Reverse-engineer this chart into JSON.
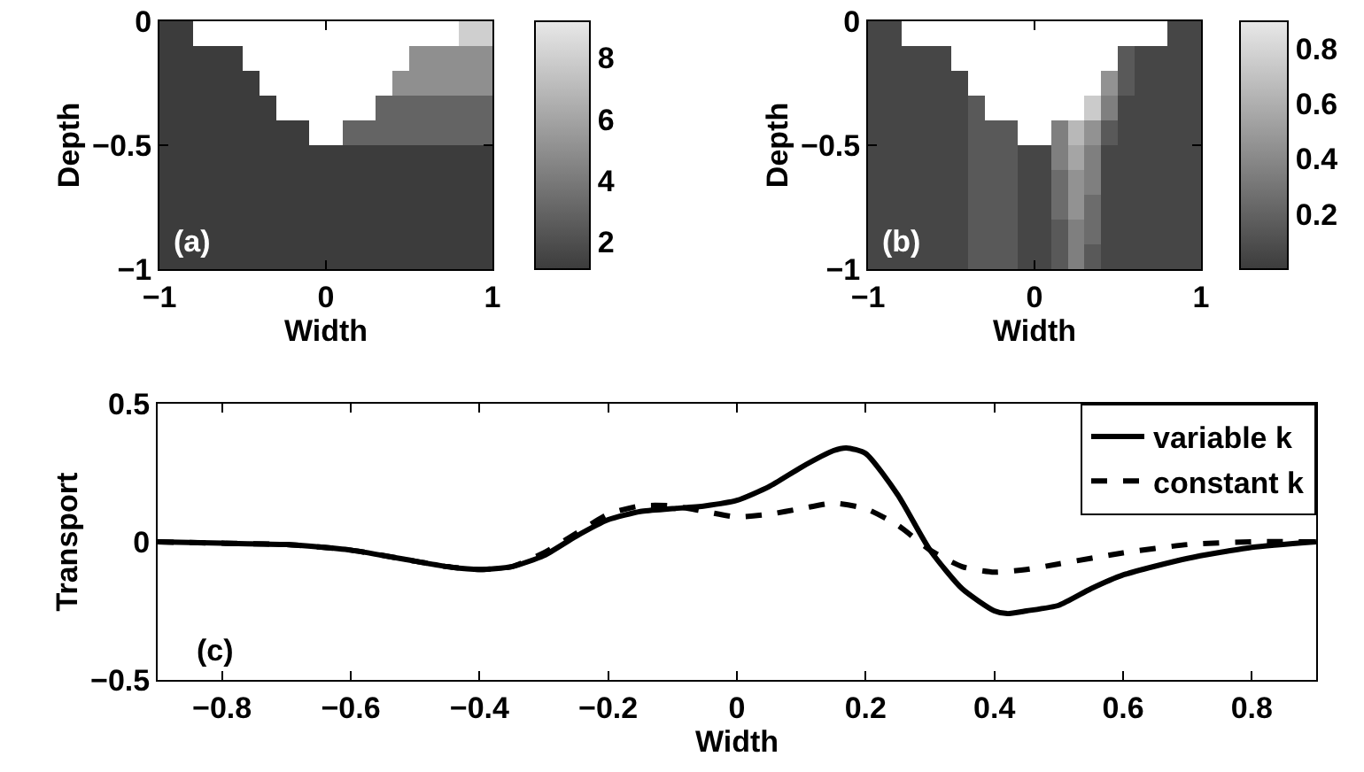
{
  "chart_data": [
    {
      "type": "heatmap",
      "xlabel": "Width",
      "ylabel": "Depth",
      "annotations": [
        "(a)"
      ],
      "x": [
        -0.95,
        -0.85,
        -0.75,
        -0.65,
        -0.55,
        -0.45,
        -0.35,
        -0.25,
        -0.15,
        -0.05,
        0.05,
        0.15,
        0.25,
        0.35,
        0.45,
        0.55,
        0.65,
        0.75,
        0.85,
        0.95
      ],
      "y": [
        -0.05,
        -0.15,
        -0.25,
        -0.35,
        -0.45,
        -0.55,
        -0.65,
        -0.75,
        -0.85,
        -0.95
      ],
      "cells": [
        [
          1,
          1,
          null,
          null,
          null,
          null,
          null,
          null,
          null,
          null,
          null,
          null,
          null,
          null,
          null,
          null,
          null,
          null,
          8,
          8
        ],
        [
          1,
          1,
          1,
          1,
          1,
          null,
          null,
          null,
          null,
          null,
          null,
          null,
          null,
          null,
          null,
          5,
          5,
          5,
          5,
          5
        ],
        [
          1,
          1,
          1,
          1,
          1,
          1,
          null,
          null,
          null,
          null,
          null,
          null,
          null,
          null,
          5,
          5,
          5,
          5,
          5,
          5
        ],
        [
          1,
          1,
          1,
          1,
          1,
          1,
          1,
          null,
          null,
          null,
          null,
          null,
          null,
          3,
          3,
          3,
          3,
          3,
          3,
          3
        ],
        [
          1,
          1,
          1,
          1,
          1,
          1,
          1,
          1,
          1,
          null,
          null,
          3,
          3,
          3,
          3,
          3,
          3,
          3,
          3,
          3
        ],
        [
          1,
          1,
          1,
          1,
          1,
          1,
          1,
          1,
          1,
          1,
          1,
          1,
          1,
          1,
          1,
          1,
          1,
          1,
          1,
          1
        ],
        [
          1,
          1,
          1,
          1,
          1,
          1,
          1,
          1,
          1,
          1,
          1,
          1,
          1,
          1,
          1,
          1,
          1,
          1,
          1,
          1
        ],
        [
          1,
          1,
          1,
          1,
          1,
          1,
          1,
          1,
          1,
          1,
          1,
          1,
          1,
          1,
          1,
          1,
          1,
          1,
          1,
          1
        ],
        [
          1,
          1,
          1,
          1,
          1,
          1,
          1,
          1,
          1,
          1,
          1,
          1,
          1,
          1,
          1,
          1,
          1,
          1,
          1,
          1
        ],
        [
          1,
          1,
          1,
          1,
          1,
          1,
          1,
          1,
          1,
          1,
          1,
          1,
          1,
          1,
          1,
          1,
          1,
          1,
          1,
          1
        ]
      ],
      "clim": [
        1.1,
        9.2
      ],
      "cticks": [
        2,
        4,
        6,
        8
      ],
      "xlim": [
        -1,
        1
      ],
      "xticks": [
        -1,
        0,
        1
      ],
      "ylim": [
        -1,
        0
      ],
      "yticks": [
        -1,
        -0.5,
        0
      ]
    },
    {
      "type": "heatmap",
      "xlabel": "Width",
      "ylabel": "Depth",
      "annotations": [
        "(b)"
      ],
      "x": [
        -0.95,
        -0.85,
        -0.75,
        -0.65,
        -0.55,
        -0.45,
        -0.35,
        -0.25,
        -0.15,
        -0.05,
        0.05,
        0.15,
        0.25,
        0.35,
        0.45,
        0.55,
        0.65,
        0.75,
        0.85,
        0.95
      ],
      "y": [
        -0.05,
        -0.15,
        -0.25,
        -0.35,
        -0.45,
        -0.55,
        -0.65,
        -0.75,
        -0.85,
        -0.95
      ],
      "cells": [
        [
          0.05,
          0.05,
          null,
          null,
          null,
          null,
          null,
          null,
          null,
          null,
          null,
          null,
          null,
          null,
          null,
          null,
          null,
          null,
          0.05,
          0.05
        ],
        [
          0.05,
          0.05,
          0.05,
          0.05,
          0.05,
          null,
          null,
          null,
          null,
          null,
          null,
          null,
          null,
          null,
          null,
          0.15,
          0.05,
          0.05,
          0.05,
          0.05
        ],
        [
          0.05,
          0.05,
          0.05,
          0.05,
          0.05,
          0.05,
          null,
          null,
          null,
          null,
          null,
          null,
          null,
          null,
          0.45,
          0.15,
          0.05,
          0.05,
          0.05,
          0.05
        ],
        [
          0.05,
          0.05,
          0.05,
          0.05,
          0.05,
          0.05,
          0.15,
          null,
          null,
          null,
          null,
          null,
          null,
          0.75,
          0.35,
          0.05,
          0.05,
          0.05,
          0.05,
          0.05
        ],
        [
          0.05,
          0.05,
          0.05,
          0.05,
          0.05,
          0.05,
          0.15,
          0.15,
          0.15,
          null,
          null,
          0.35,
          0.65,
          0.45,
          0.15,
          0.05,
          0.05,
          0.05,
          0.05,
          0.05
        ],
        [
          0.05,
          0.05,
          0.05,
          0.05,
          0.05,
          0.05,
          0.15,
          0.15,
          0.15,
          0.05,
          0.05,
          0.35,
          0.55,
          0.35,
          0.05,
          0.05,
          0.05,
          0.05,
          0.05,
          0.05
        ],
        [
          0.05,
          0.05,
          0.05,
          0.05,
          0.05,
          0.05,
          0.15,
          0.15,
          0.15,
          0.05,
          0.05,
          0.25,
          0.45,
          0.35,
          0.05,
          0.05,
          0.05,
          0.05,
          0.05,
          0.05
        ],
        [
          0.05,
          0.05,
          0.05,
          0.05,
          0.05,
          0.05,
          0.15,
          0.15,
          0.15,
          0.05,
          0.05,
          0.25,
          0.45,
          0.25,
          0.05,
          0.05,
          0.05,
          0.05,
          0.05,
          0.05
        ],
        [
          0.05,
          0.05,
          0.05,
          0.05,
          0.05,
          0.05,
          0.15,
          0.15,
          0.15,
          0.05,
          0.05,
          0.15,
          0.35,
          0.25,
          0.05,
          0.05,
          0.05,
          0.05,
          0.05,
          0.05
        ],
        [
          0.05,
          0.05,
          0.05,
          0.05,
          0.05,
          0.05,
          0.15,
          0.15,
          0.15,
          0.05,
          0.05,
          0.15,
          0.35,
          0.15,
          0.05,
          0.05,
          0.05,
          0.05,
          0.05,
          0.05
        ]
      ],
      "clim": [
        0,
        0.9
      ],
      "cticks": [
        0.2,
        0.4,
        0.6,
        0.8
      ],
      "xlim": [
        -1,
        1
      ],
      "xticks": [
        -1,
        0,
        1
      ],
      "ylim": [
        -1,
        0
      ],
      "yticks": [
        -1,
        -0.5,
        0
      ]
    },
    {
      "type": "line",
      "xlabel": "Width",
      "ylabel": "Transport",
      "annotations": [
        "(c)"
      ],
      "legend": "top right",
      "xlim": [
        -0.9,
        0.9
      ],
      "xticks": [
        -0.8,
        -0.6,
        -0.4,
        -0.2,
        0,
        0.2,
        0.4,
        0.6,
        0.8
      ],
      "ylim": [
        -0.5,
        0.5
      ],
      "yticks": [
        -0.5,
        0,
        0.5
      ],
      "series": [
        {
          "name": "variable k",
          "color": "#000000",
          "line_style": "solid",
          "x": [
            -0.9,
            -0.8,
            -0.7,
            -0.6,
            -0.5,
            -0.45,
            -0.4,
            -0.35,
            -0.3,
            -0.25,
            -0.2,
            -0.15,
            -0.1,
            -0.05,
            0,
            0.05,
            0.1,
            0.15,
            0.17,
            0.2,
            0.25,
            0.3,
            0.35,
            0.4,
            0.42,
            0.45,
            0.5,
            0.55,
            0.6,
            0.7,
            0.8,
            0.9
          ],
          "values": [
            0,
            -0.005,
            -0.01,
            -0.03,
            -0.07,
            -0.09,
            -0.1,
            -0.09,
            -0.05,
            0.02,
            0.08,
            0.11,
            0.12,
            0.13,
            0.15,
            0.2,
            0.27,
            0.33,
            0.34,
            0.32,
            0.17,
            -0.03,
            -0.17,
            -0.25,
            -0.26,
            -0.25,
            -0.23,
            -0.17,
            -0.12,
            -0.06,
            -0.02,
            0
          ]
        },
        {
          "name": "constant k",
          "color": "#000000",
          "line_style": "dashed",
          "x": [
            -0.9,
            -0.8,
            -0.7,
            -0.6,
            -0.5,
            -0.45,
            -0.4,
            -0.35,
            -0.3,
            -0.25,
            -0.2,
            -0.15,
            -0.1,
            -0.05,
            0,
            0.05,
            0.1,
            0.15,
            0.2,
            0.25,
            0.3,
            0.35,
            0.4,
            0.45,
            0.5,
            0.6,
            0.7,
            0.8,
            0.9
          ],
          "values": [
            0,
            -0.005,
            -0.01,
            -0.03,
            -0.07,
            -0.09,
            -0.1,
            -0.09,
            -0.04,
            0.03,
            0.1,
            0.13,
            0.13,
            0.11,
            0.09,
            0.1,
            0.12,
            0.14,
            0.12,
            0.06,
            -0.03,
            -0.09,
            -0.11,
            -0.1,
            -0.08,
            -0.04,
            -0.01,
            0,
            0
          ]
        }
      ]
    }
  ]
}
